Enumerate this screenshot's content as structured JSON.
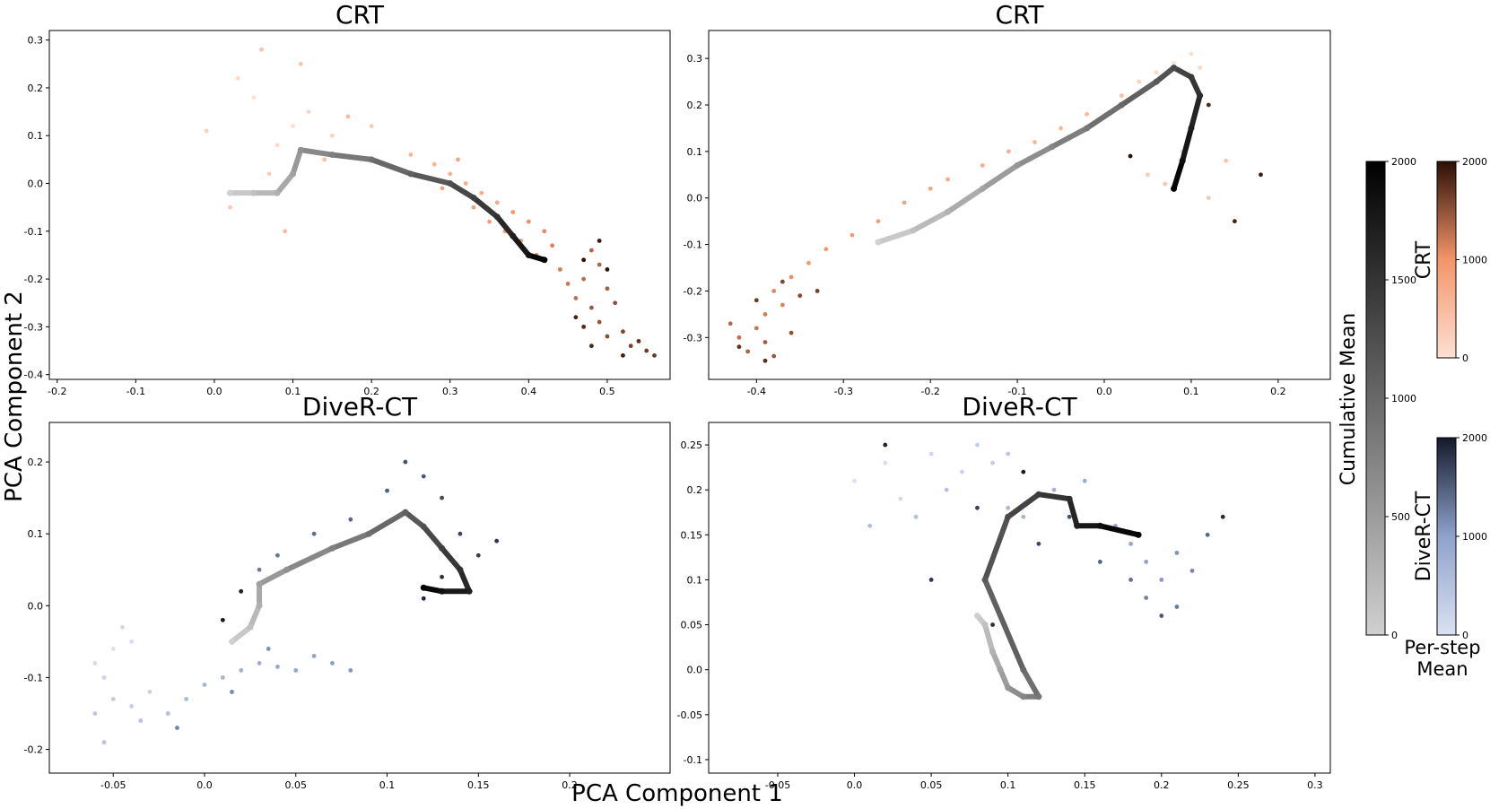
{
  "figure": {
    "supxlabel": "PCA Component 1",
    "supylabel": "PCA Component 2"
  },
  "colorbars": {
    "cumulative": {
      "label": "Cumulative Mean",
      "min": 0,
      "max": 2000,
      "ticks": [
        0,
        500,
        1000,
        1500,
        2000
      ],
      "color_low": "#d0d0d0",
      "color_high": "#000000"
    },
    "crt": {
      "label": "CRT",
      "min": 0,
      "max": 2000,
      "ticks": [
        0,
        1000,
        2000
      ],
      "colors": [
        "#fde0d2",
        "#f4956a",
        "#2b0f05"
      ]
    },
    "diverct": {
      "label": "DiveR-CT",
      "min": 0,
      "max": 2000,
      "ticks": [
        0,
        1000,
        2000
      ],
      "colors": [
        "#dbe1f1",
        "#8ea2cc",
        "#141a2b"
      ]
    },
    "per_step_caption": [
      "Per-step",
      "Mean"
    ]
  },
  "chart_data": [
    {
      "type": "scatter",
      "title": "CRT",
      "method": "crt",
      "xlim": [
        -0.21,
        0.58
      ],
      "ylim": [
        -0.41,
        0.32
      ],
      "xticks": [
        -0.2,
        -0.1,
        0.0,
        0.1,
        0.2,
        0.3,
        0.4,
        0.5
      ],
      "yticks": [
        -0.4,
        -0.3,
        -0.2,
        -0.1,
        0.0,
        0.1,
        0.2,
        0.3
      ],
      "points_per_step": [
        {
          "x": 0.1,
          "y": 0.12
        },
        {
          "x": 0.05,
          "y": 0.18
        },
        {
          "x": 0.03,
          "y": 0.22
        },
        {
          "x": 0.08,
          "y": 0.08
        },
        {
          "x": 0.12,
          "y": 0.15
        },
        {
          "x": 0.15,
          "y": 0.1
        },
        {
          "x": -0.01,
          "y": 0.11
        },
        {
          "x": 0.07,
          "y": 0.02
        },
        {
          "x": 0.2,
          "y": 0.12
        },
        {
          "x": 0.02,
          "y": -0.05
        },
        {
          "x": 0.11,
          "y": 0.25
        },
        {
          "x": 0.06,
          "y": 0.28
        },
        {
          "x": 0.14,
          "y": 0.05
        },
        {
          "x": 0.17,
          "y": 0.14
        },
        {
          "x": 0.09,
          "y": -0.1
        },
        {
          "x": 0.25,
          "y": 0.06
        },
        {
          "x": 0.28,
          "y": 0.04
        },
        {
          "x": 0.3,
          "y": 0.02
        },
        {
          "x": 0.32,
          "y": 0.0
        },
        {
          "x": 0.34,
          "y": -0.02
        },
        {
          "x": 0.36,
          "y": -0.04
        },
        {
          "x": 0.31,
          "y": 0.05
        },
        {
          "x": 0.29,
          "y": -0.01
        },
        {
          "x": 0.33,
          "y": -0.05
        },
        {
          "x": 0.35,
          "y": -0.08
        },
        {
          "x": 0.38,
          "y": -0.06
        },
        {
          "x": 0.37,
          "y": -0.1
        },
        {
          "x": 0.39,
          "y": -0.12
        },
        {
          "x": 0.4,
          "y": -0.08
        },
        {
          "x": 0.42,
          "y": -0.1
        },
        {
          "x": 0.41,
          "y": -0.15
        },
        {
          "x": 0.43,
          "y": -0.13
        },
        {
          "x": 0.44,
          "y": -0.18
        },
        {
          "x": 0.45,
          "y": -0.21
        },
        {
          "x": 0.46,
          "y": -0.24
        },
        {
          "x": 0.47,
          "y": -0.2
        },
        {
          "x": 0.48,
          "y": -0.14
        },
        {
          "x": 0.49,
          "y": -0.17
        },
        {
          "x": 0.5,
          "y": -0.22
        },
        {
          "x": 0.48,
          "y": -0.26
        },
        {
          "x": 0.49,
          "y": -0.29
        },
        {
          "x": 0.51,
          "y": -0.25
        },
        {
          "x": 0.5,
          "y": -0.32
        },
        {
          "x": 0.52,
          "y": -0.31
        },
        {
          "x": 0.53,
          "y": -0.34
        },
        {
          "x": 0.55,
          "y": -0.35
        },
        {
          "x": 0.56,
          "y": -0.36
        },
        {
          "x": 0.54,
          "y": -0.33
        },
        {
          "x": 0.47,
          "y": -0.3
        },
        {
          "x": 0.48,
          "y": -0.34
        },
        {
          "x": 0.46,
          "y": -0.28
        },
        {
          "x": 0.52,
          "y": -0.36
        },
        {
          "x": 0.49,
          "y": -0.12
        },
        {
          "x": 0.5,
          "y": -0.18
        },
        {
          "x": 0.47,
          "y": -0.16
        }
      ],
      "cumulative_path": [
        {
          "x": 0.02,
          "y": -0.02
        },
        {
          "x": 0.05,
          "y": -0.02
        },
        {
          "x": 0.08,
          "y": -0.02
        },
        {
          "x": 0.1,
          "y": 0.02
        },
        {
          "x": 0.11,
          "y": 0.07
        },
        {
          "x": 0.15,
          "y": 0.06
        },
        {
          "x": 0.2,
          "y": 0.05
        },
        {
          "x": 0.25,
          "y": 0.02
        },
        {
          "x": 0.3,
          "y": 0.0
        },
        {
          "x": 0.33,
          "y": -0.03
        },
        {
          "x": 0.36,
          "y": -0.07
        },
        {
          "x": 0.38,
          "y": -0.11
        },
        {
          "x": 0.4,
          "y": -0.15
        },
        {
          "x": 0.42,
          "y": -0.16
        }
      ]
    },
    {
      "type": "scatter",
      "title": "CRT",
      "method": "crt",
      "xlim": [
        -0.455,
        0.26
      ],
      "ylim": [
        -0.39,
        0.36
      ],
      "xticks": [
        -0.4,
        -0.3,
        -0.2,
        -0.1,
        0.0,
        0.1,
        0.2
      ],
      "yticks": [
        -0.3,
        -0.2,
        -0.1,
        0.0,
        0.1,
        0.2,
        0.3
      ],
      "points_per_step": [
        {
          "x": 0.08,
          "y": 0.29
        },
        {
          "x": 0.1,
          "y": 0.31
        },
        {
          "x": 0.06,
          "y": 0.27
        },
        {
          "x": 0.11,
          "y": 0.28
        },
        {
          "x": 0.04,
          "y": 0.25
        },
        {
          "x": 0.09,
          "y": 0.1
        },
        {
          "x": 0.05,
          "y": 0.05
        },
        {
          "x": 0.12,
          "y": 0.0
        },
        {
          "x": 0.07,
          "y": 0.03
        },
        {
          "x": 0.14,
          "y": 0.08
        },
        {
          "x": 0.02,
          "y": 0.22
        },
        {
          "x": -0.02,
          "y": 0.18
        },
        {
          "x": -0.05,
          "y": 0.15
        },
        {
          "x": -0.08,
          "y": 0.12
        },
        {
          "x": -0.11,
          "y": 0.1
        },
        {
          "x": -0.14,
          "y": 0.07
        },
        {
          "x": -0.18,
          "y": 0.04
        },
        {
          "x": -0.2,
          "y": 0.02
        },
        {
          "x": -0.23,
          "y": -0.01
        },
        {
          "x": -0.26,
          "y": -0.05
        },
        {
          "x": -0.29,
          "y": -0.08
        },
        {
          "x": -0.32,
          "y": -0.11
        },
        {
          "x": -0.34,
          "y": -0.14
        },
        {
          "x": -0.36,
          "y": -0.17
        },
        {
          "x": -0.38,
          "y": -0.2
        },
        {
          "x": -0.37,
          "y": -0.23
        },
        {
          "x": -0.39,
          "y": -0.25
        },
        {
          "x": -0.4,
          "y": -0.28
        },
        {
          "x": -0.42,
          "y": -0.3
        },
        {
          "x": -0.43,
          "y": -0.27
        },
        {
          "x": -0.41,
          "y": -0.33
        },
        {
          "x": -0.39,
          "y": -0.31
        },
        {
          "x": -0.38,
          "y": -0.34
        },
        {
          "x": -0.36,
          "y": -0.29
        },
        {
          "x": -0.35,
          "y": -0.21
        },
        {
          "x": -0.37,
          "y": -0.18
        },
        {
          "x": -0.33,
          "y": -0.2
        },
        {
          "x": -0.4,
          "y": -0.22
        },
        {
          "x": -0.42,
          "y": -0.32
        },
        {
          "x": -0.39,
          "y": -0.35
        },
        {
          "x": 0.12,
          "y": 0.2
        },
        {
          "x": 0.15,
          "y": -0.05
        },
        {
          "x": 0.18,
          "y": 0.05
        },
        {
          "x": -0.05,
          "y": 0.12
        },
        {
          "x": 0.03,
          "y": 0.09
        }
      ],
      "cumulative_path": [
        {
          "x": -0.26,
          "y": -0.095
        },
        {
          "x": -0.22,
          "y": -0.07
        },
        {
          "x": -0.18,
          "y": -0.03
        },
        {
          "x": -0.14,
          "y": 0.02
        },
        {
          "x": -0.1,
          "y": 0.07
        },
        {
          "x": -0.06,
          "y": 0.11
        },
        {
          "x": -0.02,
          "y": 0.15
        },
        {
          "x": 0.02,
          "y": 0.2
        },
        {
          "x": 0.06,
          "y": 0.25
        },
        {
          "x": 0.08,
          "y": 0.28
        },
        {
          "x": 0.1,
          "y": 0.26
        },
        {
          "x": 0.11,
          "y": 0.22
        },
        {
          "x": 0.1,
          "y": 0.15
        },
        {
          "x": 0.09,
          "y": 0.08
        },
        {
          "x": 0.08,
          "y": 0.02
        }
      ]
    },
    {
      "type": "scatter",
      "title": "DiveR-CT",
      "method": "diverct",
      "xlim": [
        -0.085,
        0.255
      ],
      "ylim": [
        -0.233,
        0.255
      ],
      "xticks": [
        -0.05,
        0.0,
        0.05,
        0.1,
        0.15,
        0.2
      ],
      "yticks": [
        -0.2,
        -0.1,
        0.0,
        0.1,
        0.2
      ],
      "points_per_step": [
        {
          "x": -0.05,
          "y": -0.06
        },
        {
          "x": -0.04,
          "y": -0.05
        },
        {
          "x": -0.06,
          "y": -0.08
        },
        {
          "x": -0.045,
          "y": -0.03
        },
        {
          "x": -0.055,
          "y": -0.1
        },
        {
          "x": -0.03,
          "y": -0.12
        },
        {
          "x": -0.04,
          "y": -0.14
        },
        {
          "x": -0.05,
          "y": -0.13
        },
        {
          "x": -0.06,
          "y": -0.15
        },
        {
          "x": -0.055,
          "y": -0.19
        },
        {
          "x": -0.035,
          "y": -0.16
        },
        {
          "x": -0.02,
          "y": -0.15
        },
        {
          "x": -0.01,
          "y": -0.13
        },
        {
          "x": 0.0,
          "y": -0.11
        },
        {
          "x": 0.01,
          "y": -0.1
        },
        {
          "x": 0.02,
          "y": -0.09
        },
        {
          "x": 0.03,
          "y": -0.08
        },
        {
          "x": 0.04,
          "y": -0.085
        },
        {
          "x": 0.05,
          "y": -0.09
        },
        {
          "x": 0.06,
          "y": -0.07
        },
        {
          "x": 0.07,
          "y": -0.08
        },
        {
          "x": 0.08,
          "y": -0.09
        },
        {
          "x": 0.035,
          "y": -0.06
        },
        {
          "x": 0.015,
          "y": -0.12
        },
        {
          "x": -0.015,
          "y": -0.17
        },
        {
          "x": 0.03,
          "y": 0.05
        },
        {
          "x": 0.04,
          "y": 0.07
        },
        {
          "x": 0.06,
          "y": 0.1
        },
        {
          "x": 0.08,
          "y": 0.12
        },
        {
          "x": 0.1,
          "y": 0.16
        },
        {
          "x": 0.12,
          "y": 0.18
        },
        {
          "x": 0.11,
          "y": 0.2
        },
        {
          "x": 0.13,
          "y": 0.15
        },
        {
          "x": 0.14,
          "y": 0.1
        },
        {
          "x": 0.15,
          "y": 0.07
        },
        {
          "x": 0.16,
          "y": 0.09
        },
        {
          "x": 0.13,
          "y": 0.04
        },
        {
          "x": 0.12,
          "y": 0.01
        },
        {
          "x": 0.02,
          "y": 0.02
        },
        {
          "x": 0.01,
          "y": -0.02
        }
      ],
      "cumulative_path": [
        {
          "x": 0.015,
          "y": -0.05
        },
        {
          "x": 0.025,
          "y": -0.03
        },
        {
          "x": 0.03,
          "y": 0.0
        },
        {
          "x": 0.03,
          "y": 0.03
        },
        {
          "x": 0.045,
          "y": 0.05
        },
        {
          "x": 0.07,
          "y": 0.08
        },
        {
          "x": 0.09,
          "y": 0.1
        },
        {
          "x": 0.11,
          "y": 0.13
        },
        {
          "x": 0.12,
          "y": 0.11
        },
        {
          "x": 0.13,
          "y": 0.08
        },
        {
          "x": 0.14,
          "y": 0.05
        },
        {
          "x": 0.145,
          "y": 0.02
        },
        {
          "x": 0.13,
          "y": 0.02
        },
        {
          "x": 0.12,
          "y": 0.025
        }
      ]
    },
    {
      "type": "scatter",
      "title": "DiveR-CT",
      "method": "diverct",
      "xlim": [
        -0.095,
        0.31
      ],
      "ylim": [
        -0.115,
        0.275
      ],
      "xticks": [
        -0.05,
        0.0,
        0.05,
        0.1,
        0.15,
        0.2,
        0.25,
        0.3
      ],
      "yticks": [
        -0.1,
        -0.05,
        0.0,
        0.05,
        0.1,
        0.15,
        0.2,
        0.25
      ],
      "points_per_step": [
        {
          "x": 0.0,
          "y": 0.21
        },
        {
          "x": 0.02,
          "y": 0.23
        },
        {
          "x": 0.03,
          "y": 0.19
        },
        {
          "x": 0.05,
          "y": 0.24
        },
        {
          "x": 0.07,
          "y": 0.22
        },
        {
          "x": 0.08,
          "y": 0.25
        },
        {
          "x": 0.09,
          "y": 0.23
        },
        {
          "x": 0.1,
          "y": 0.24
        },
        {
          "x": 0.06,
          "y": 0.2
        },
        {
          "x": 0.04,
          "y": 0.17
        },
        {
          "x": 0.01,
          "y": 0.16
        },
        {
          "x": 0.1,
          "y": 0.18
        },
        {
          "x": 0.11,
          "y": 0.17
        },
        {
          "x": 0.13,
          "y": 0.2
        },
        {
          "x": 0.15,
          "y": 0.21
        },
        {
          "x": 0.17,
          "y": 0.16
        },
        {
          "x": 0.18,
          "y": 0.14
        },
        {
          "x": 0.19,
          "y": 0.12
        },
        {
          "x": 0.2,
          "y": 0.1
        },
        {
          "x": 0.21,
          "y": 0.13
        },
        {
          "x": 0.22,
          "y": 0.11
        },
        {
          "x": 0.19,
          "y": 0.08
        },
        {
          "x": 0.21,
          "y": 0.07
        },
        {
          "x": 0.18,
          "y": 0.1
        },
        {
          "x": 0.23,
          "y": 0.15
        },
        {
          "x": 0.16,
          "y": 0.12
        },
        {
          "x": 0.2,
          "y": 0.06
        },
        {
          "x": 0.14,
          "y": 0.17
        },
        {
          "x": 0.12,
          "y": 0.14
        },
        {
          "x": 0.08,
          "y": 0.18
        },
        {
          "x": 0.05,
          "y": 0.1
        },
        {
          "x": 0.09,
          "y": 0.05
        },
        {
          "x": 0.24,
          "y": 0.17
        },
        {
          "x": 0.02,
          "y": 0.25
        },
        {
          "x": 0.11,
          "y": 0.22
        }
      ],
      "cumulative_path": [
        {
          "x": 0.08,
          "y": 0.06
        },
        {
          "x": 0.085,
          "y": 0.05
        },
        {
          "x": 0.09,
          "y": 0.02
        },
        {
          "x": 0.095,
          "y": 0.0
        },
        {
          "x": 0.1,
          "y": -0.02
        },
        {
          "x": 0.11,
          "y": -0.03
        },
        {
          "x": 0.12,
          "y": -0.03
        },
        {
          "x": 0.11,
          "y": 0.0
        },
        {
          "x": 0.085,
          "y": 0.1
        },
        {
          "x": 0.1,
          "y": 0.17
        },
        {
          "x": 0.12,
          "y": 0.195
        },
        {
          "x": 0.14,
          "y": 0.19
        },
        {
          "x": 0.145,
          "y": 0.16
        },
        {
          "x": 0.16,
          "y": 0.16
        },
        {
          "x": 0.185,
          "y": 0.15
        }
      ]
    }
  ]
}
